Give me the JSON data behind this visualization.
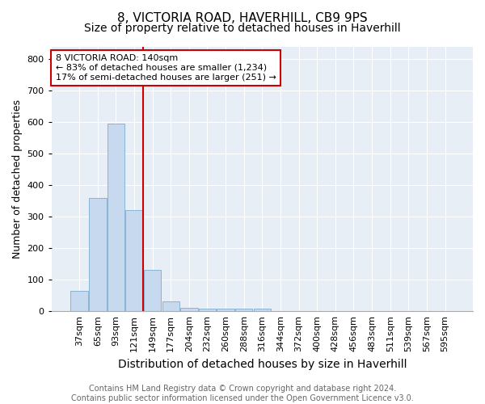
{
  "title1": "8, VICTORIA ROAD, HAVERHILL, CB9 9PS",
  "title2": "Size of property relative to detached houses in Haverhill",
  "xlabel": "Distribution of detached houses by size in Haverhill",
  "ylabel": "Number of detached properties",
  "categories": [
    "37sqm",
    "65sqm",
    "93sqm",
    "121sqm",
    "149sqm",
    "177sqm",
    "204sqm",
    "232sqm",
    "260sqm",
    "288sqm",
    "316sqm",
    "344sqm",
    "372sqm",
    "400sqm",
    "428sqm",
    "456sqm",
    "483sqm",
    "511sqm",
    "539sqm",
    "567sqm",
    "595sqm"
  ],
  "values": [
    65,
    360,
    595,
    320,
    130,
    30,
    10,
    8,
    8,
    8,
    8,
    0,
    0,
    0,
    0,
    0,
    0,
    0,
    0,
    0,
    0
  ],
  "bar_color": "#c6d9ee",
  "bar_edge_color": "#8ab4d4",
  "vline_x_index": 4,
  "vline_color": "#cc0000",
  "annotation_line1": "8 VICTORIA ROAD: 140sqm",
  "annotation_line2": "← 83% of detached houses are smaller (1,234)",
  "annotation_line3": "17% of semi-detached houses are larger (251) →",
  "annotation_box_color": "#ffffff",
  "annotation_box_edge": "#cc0000",
  "ylim": [
    0,
    840
  ],
  "yticks": [
    0,
    100,
    200,
    300,
    400,
    500,
    600,
    700,
    800
  ],
  "footnote": "Contains HM Land Registry data © Crown copyright and database right 2024.\nContains public sector information licensed under the Open Government Licence v3.0.",
  "plot_bg_color": "#e8eef5",
  "grid_color": "#ffffff",
  "title1_fontsize": 11,
  "title2_fontsize": 10,
  "xlabel_fontsize": 10,
  "ylabel_fontsize": 9,
  "tick_fontsize": 8,
  "annotation_fontsize": 8,
  "footnote_fontsize": 7
}
